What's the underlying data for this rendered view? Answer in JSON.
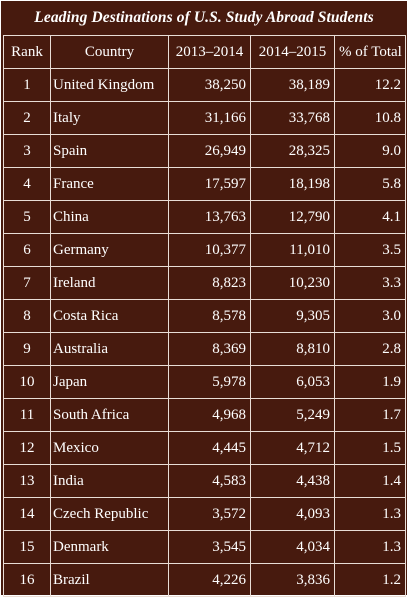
{
  "title": "Leading Destinations of U.S. Study Abroad Students",
  "colors": {
    "background": "#471a0e",
    "text": "#ffffff",
    "grid": "#e9ddd6"
  },
  "columns": [
    "Rank",
    "Country",
    "2013–2014",
    "2014–2015",
    "% of Total"
  ],
  "rows": [
    {
      "rank": "1",
      "country": "United Kingdom",
      "y2013_2014": "38,250",
      "y2014_2015": "38,189",
      "pct": "12.2"
    },
    {
      "rank": "2",
      "country": "Italy",
      "y2013_2014": "31,166",
      "y2014_2015": "33,768",
      "pct": "10.8"
    },
    {
      "rank": "3",
      "country": "Spain",
      "y2013_2014": "26,949",
      "y2014_2015": "28,325",
      "pct": "9.0"
    },
    {
      "rank": "4",
      "country": "France",
      "y2013_2014": "17,597",
      "y2014_2015": "18,198",
      "pct": "5.8"
    },
    {
      "rank": "5",
      "country": "China",
      "y2013_2014": "13,763",
      "y2014_2015": "12,790",
      "pct": "4.1"
    },
    {
      "rank": "6",
      "country": "Germany",
      "y2013_2014": "10,377",
      "y2014_2015": "11,010",
      "pct": "3.5"
    },
    {
      "rank": "7",
      "country": "Ireland",
      "y2013_2014": "8,823",
      "y2014_2015": "10,230",
      "pct": "3.3"
    },
    {
      "rank": "8",
      "country": "Costa Rica",
      "y2013_2014": "8,578",
      "y2014_2015": "9,305",
      "pct": "3.0"
    },
    {
      "rank": "9",
      "country": "Australia",
      "y2013_2014": "8,369",
      "y2014_2015": "8,810",
      "pct": "2.8"
    },
    {
      "rank": "10",
      "country": "Japan",
      "y2013_2014": "5,978",
      "y2014_2015": "6,053",
      "pct": "1.9"
    },
    {
      "rank": "11",
      "country": "South Africa",
      "y2013_2014": "4,968",
      "y2014_2015": "5,249",
      "pct": "1.7"
    },
    {
      "rank": "12",
      "country": "Mexico",
      "y2013_2014": "4,445",
      "y2014_2015": "4,712",
      "pct": "1.5"
    },
    {
      "rank": "13",
      "country": "India",
      "y2013_2014": "4,583",
      "y2014_2015": "4,438",
      "pct": "1.4"
    },
    {
      "rank": "14",
      "country": "Czech Republic",
      "y2013_2014": "3,572",
      "y2014_2015": "4,093",
      "pct": "1.3"
    },
    {
      "rank": "15",
      "country": "Denmark",
      "y2013_2014": "3,545",
      "y2014_2015": "4,034",
      "pct": "1.3"
    },
    {
      "rank": "16",
      "country": "Brazil",
      "y2013_2014": "4,226",
      "y2014_2015": "3,836",
      "pct": "1.2"
    }
  ]
}
